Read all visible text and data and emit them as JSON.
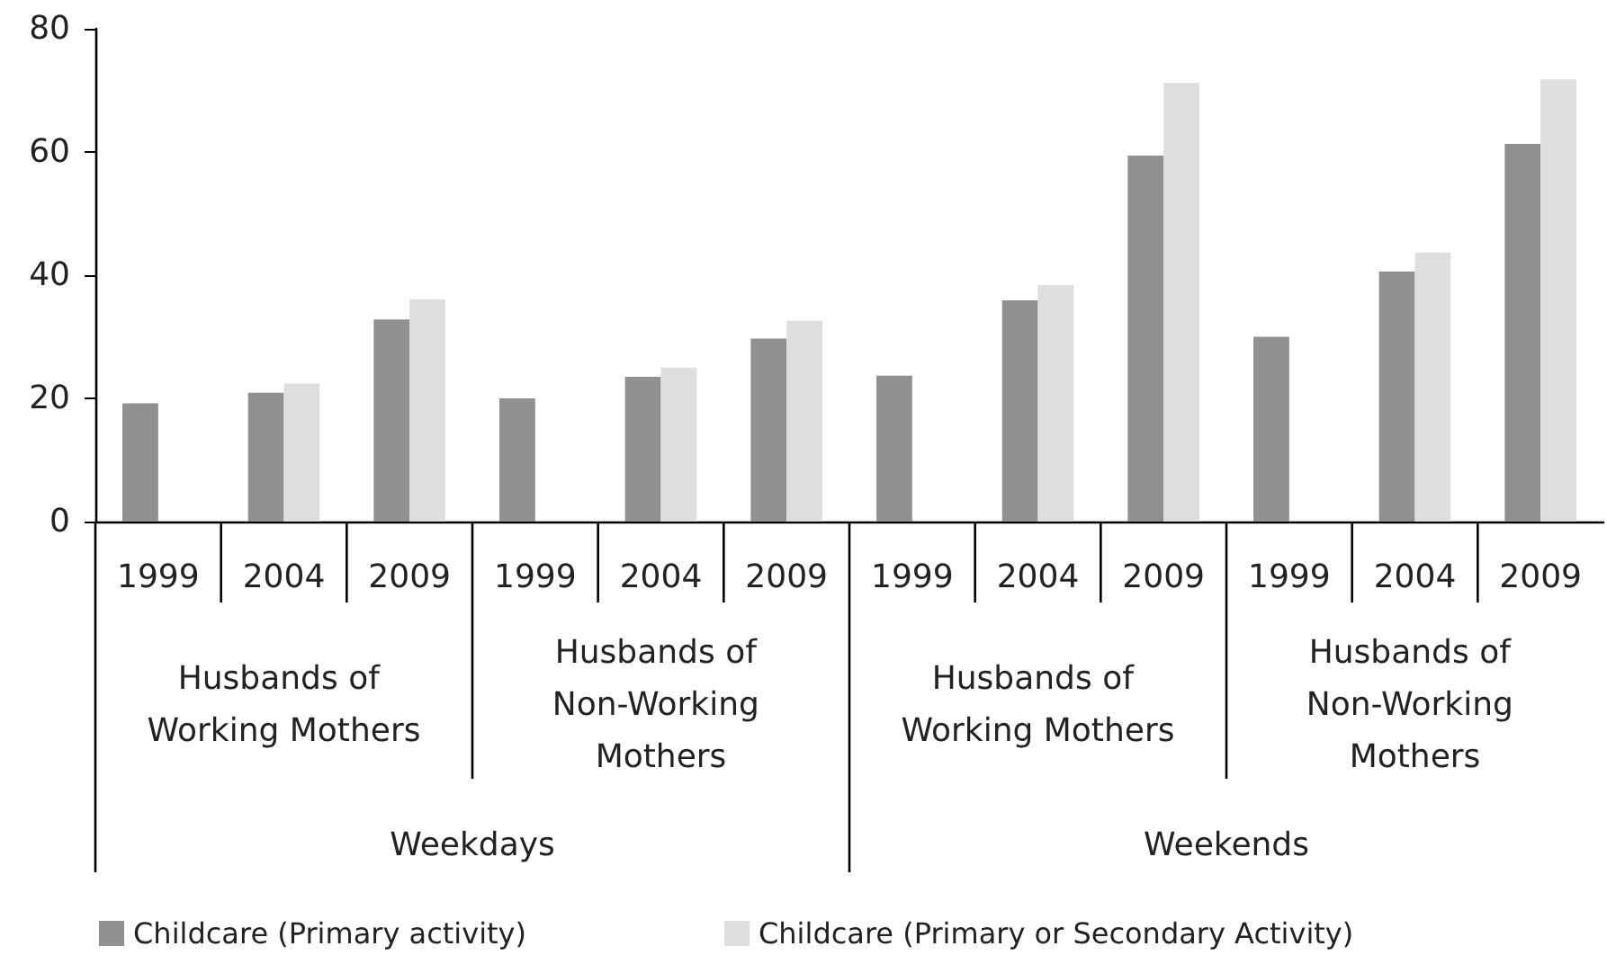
{
  "chart_data": {
    "type": "bar",
    "categories": [
      "1999",
      "2004",
      "2009",
      "1999",
      "2004",
      "2009",
      "1999",
      "2004",
      "2009",
      "1999",
      "2004",
      "2009"
    ],
    "series": [
      {
        "name": "Childcare (Primary activity)",
        "color": "#909090",
        "values": [
          19.2,
          20.9,
          32.8,
          20.0,
          23.5,
          29.7,
          23.7,
          35.9,
          59.4,
          30.0,
          40.6,
          61.3
        ]
      },
      {
        "name": "Childcare (Primary or Secondary Activity)",
        "color": "#dedede",
        "values": [
          null,
          22.4,
          36.1,
          null,
          25.0,
          32.6,
          null,
          38.4,
          71.2,
          null,
          43.7,
          71.8
        ]
      }
    ],
    "annotations": [
      "Husbands of Working Mothers",
      "Husbands of Non-Working Mothers",
      "Husbands of Working Mothers",
      "Husbands of Non-Working Mothers",
      "Weekdays",
      "Weekends"
    ],
    "ylim": [
      0,
      80
    ],
    "yticks": [
      0,
      20,
      40,
      60,
      80
    ],
    "grid": false,
    "legend": "bottom left"
  }
}
